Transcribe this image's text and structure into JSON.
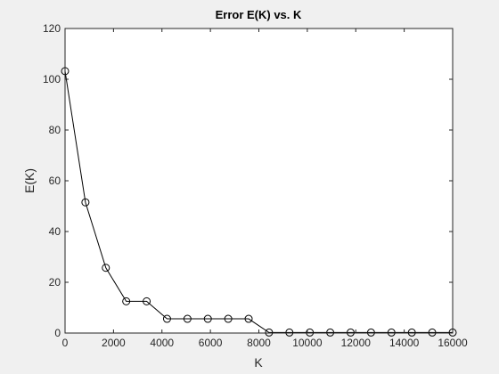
{
  "chart_data": {
    "type": "line",
    "title": "Error E(K) vs. K",
    "xlabel": "K",
    "ylabel": "E(K)",
    "xlim": [
      0,
      16000
    ],
    "ylim": [
      0,
      120
    ],
    "xticks": [
      0,
      2000,
      4000,
      6000,
      8000,
      10000,
      12000,
      14000,
      16000
    ],
    "yticks": [
      0,
      20,
      40,
      60,
      80,
      100,
      120
    ],
    "grid": false,
    "marker": "circle",
    "line_color": "#000000",
    "series": [
      {
        "x": [
          0,
          842,
          1684,
          2526,
          3368,
          4210,
          5052,
          5894,
          6736,
          7578,
          8420,
          9262,
          10104,
          10946,
          11788,
          12630,
          13472,
          14314,
          15156,
          16000
        ],
        "y": [
          103.2,
          51.5,
          25.7,
          12.5,
          12.5,
          5.6,
          5.6,
          5.6,
          5.6,
          5.6,
          0.2,
          0.2,
          0.2,
          0.2,
          0.2,
          0.2,
          0.2,
          0.2,
          0.2,
          0.2
        ]
      }
    ]
  }
}
